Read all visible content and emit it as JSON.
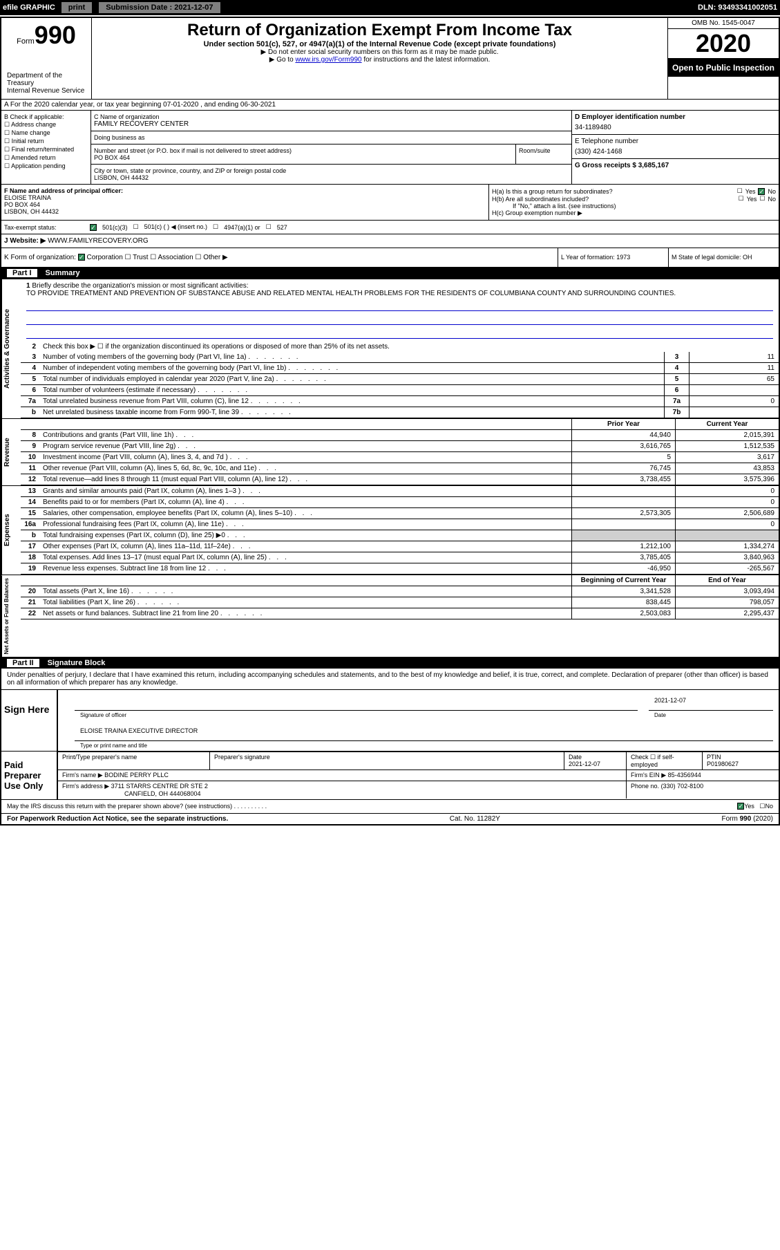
{
  "topbar": {
    "efile": "efile GRAPHIC",
    "print": "print",
    "submission_label": "Submission Date : 2021-12-07",
    "dln": "DLN: 93493341002051"
  },
  "header": {
    "form_prefix": "Form",
    "form_num": "990",
    "title": "Return of Organization Exempt From Income Tax",
    "subtitle": "Under section 501(c), 527, or 4947(a)(1) of the Internal Revenue Code (except private foundations)",
    "note1": "▶ Do not enter social security numbers on this form as it may be made public.",
    "note2_prefix": "▶ Go to ",
    "note2_link": "www.irs.gov/Form990",
    "note2_suffix": " for instructions and the latest information.",
    "dept": "Department of the Treasury\nInternal Revenue Service",
    "omb": "OMB No. 1545-0047",
    "year": "2020",
    "open": "Open to Public Inspection"
  },
  "rowA": "A For the 2020 calendar year, or tax year beginning 07-01-2020    , and ending 06-30-2021",
  "colB": {
    "label": "B Check if applicable:",
    "opts": [
      "Address change",
      "Name change",
      "Initial return",
      "Final return/terminated",
      "Amended return",
      "Application pending"
    ]
  },
  "colC": {
    "name_label": "C Name of organization",
    "name": "FAMILY RECOVERY CENTER",
    "dba_label": "Doing business as",
    "addr_label": "Number and street (or P.O. box if mail is not delivered to street address)",
    "addr": "PO BOX 464",
    "room_label": "Room/suite",
    "city_label": "City or town, state or province, country, and ZIP or foreign postal code",
    "city": "LISBON, OH  44432"
  },
  "colDE": {
    "d_label": "D Employer identification number",
    "d_val": "34-1189480",
    "e_label": "E Telephone number",
    "e_val": "(330) 424-1468",
    "g_label": "G Gross receipts $ 3,685,167"
  },
  "officer": {
    "f_label": "F  Name and address of principal officer:",
    "name": "ELOISE TRAINA",
    "addr1": "PO BOX 464",
    "addr2": "LISBON, OH  44432",
    "ha": "H(a)  Is this a group return for subordinates?",
    "hb": "H(b)  Are all subordinates included?",
    "hb_note": "If \"No,\" attach a list. (see instructions)",
    "hc": "H(c)  Group exemption number ▶",
    "yes": "Yes",
    "no": "No"
  },
  "taxStatus": {
    "label": "Tax-exempt status:",
    "opts": [
      "501(c)(3)",
      "501(c) (   ) ◀ (insert no.)",
      "4947(a)(1) or",
      "527"
    ]
  },
  "website": {
    "label": "J   Website: ▶",
    "val": "WWW.FAMILYRECOVERY.ORG"
  },
  "rowK": {
    "label": "K Form of organization:",
    "opts": [
      "Corporation",
      "Trust",
      "Association",
      "Other ▶"
    ],
    "l": "L Year of formation: 1973",
    "m": "M State of legal domicile: OH"
  },
  "part1": {
    "num": "Part I",
    "title": "Summary",
    "q1": "Briefly describe the organization's mission or most significant activities:",
    "mission": "TO PROVIDE TREATMENT AND PREVENTION OF SUBSTANCE ABUSE AND RELATED MENTAL HEALTH PROBLEMS FOR THE RESIDENTS OF COLUMBIANA COUNTY AND SURROUNDING COUNTIES.",
    "q2": "Check this box ▶ ☐ if the organization discontinued its operations or disposed of more than 25% of its net assets.",
    "lines_gov": [
      {
        "n": "3",
        "t": "Number of voting members of the governing body (Part VI, line 1a)",
        "box": "3",
        "v": "11"
      },
      {
        "n": "4",
        "t": "Number of independent voting members of the governing body (Part VI, line 1b)",
        "box": "4",
        "v": "11"
      },
      {
        "n": "5",
        "t": "Total number of individuals employed in calendar year 2020 (Part V, line 2a)",
        "box": "5",
        "v": "65"
      },
      {
        "n": "6",
        "t": "Total number of volunteers (estimate if necessary)",
        "box": "6",
        "v": ""
      },
      {
        "n": "7a",
        "t": "Total unrelated business revenue from Part VIII, column (C), line 12",
        "box": "7a",
        "v": "0"
      },
      {
        "n": "b",
        "t": "Net unrelated business taxable income from Form 990-T, line 39",
        "box": "7b",
        "v": ""
      }
    ],
    "prior_hdr": "Prior Year",
    "curr_hdr": "Current Year",
    "revenue": [
      {
        "n": "8",
        "t": "Contributions and grants (Part VIII, line 1h)",
        "p": "44,940",
        "c": "2,015,391"
      },
      {
        "n": "9",
        "t": "Program service revenue (Part VIII, line 2g)",
        "p": "3,616,765",
        "c": "1,512,535"
      },
      {
        "n": "10",
        "t": "Investment income (Part VIII, column (A), lines 3, 4, and 7d )",
        "p": "5",
        "c": "3,617"
      },
      {
        "n": "11",
        "t": "Other revenue (Part VIII, column (A), lines 5, 6d, 8c, 9c, 10c, and 11e)",
        "p": "76,745",
        "c": "43,853"
      },
      {
        "n": "12",
        "t": "Total revenue—add lines 8 through 11 (must equal Part VIII, column (A), line 12)",
        "p": "3,738,455",
        "c": "3,575,396"
      }
    ],
    "expenses": [
      {
        "n": "13",
        "t": "Grants and similar amounts paid (Part IX, column (A), lines 1–3 )",
        "p": "",
        "c": "0"
      },
      {
        "n": "14",
        "t": "Benefits paid to or for members (Part IX, column (A), line 4)",
        "p": "",
        "c": "0"
      },
      {
        "n": "15",
        "t": "Salaries, other compensation, employee benefits (Part IX, column (A), lines 5–10)",
        "p": "2,573,305",
        "c": "2,506,689"
      },
      {
        "n": "16a",
        "t": "Professional fundraising fees (Part IX, column (A), line 11e)",
        "p": "",
        "c": "0"
      },
      {
        "n": "b",
        "t": "Total fundraising expenses (Part IX, column (D), line 25) ▶0",
        "p": "grey",
        "c": "grey"
      },
      {
        "n": "17",
        "t": "Other expenses (Part IX, column (A), lines 11a–11d, 11f–24e)",
        "p": "1,212,100",
        "c": "1,334,274"
      },
      {
        "n": "18",
        "t": "Total expenses. Add lines 13–17 (must equal Part IX, column (A), line 25)",
        "p": "3,785,405",
        "c": "3,840,963"
      },
      {
        "n": "19",
        "t": "Revenue less expenses. Subtract line 18 from line 12",
        "p": "-46,950",
        "c": "-265,567"
      }
    ],
    "net_hdr_p": "Beginning of Current Year",
    "net_hdr_c": "End of Year",
    "netassets": [
      {
        "n": "20",
        "t": "Total assets (Part X, line 16)",
        "p": "3,341,528",
        "c": "3,093,494"
      },
      {
        "n": "21",
        "t": "Total liabilities (Part X, line 26)",
        "p": "838,445",
        "c": "798,057"
      },
      {
        "n": "22",
        "t": "Net assets or fund balances. Subtract line 21 from line 20",
        "p": "2,503,083",
        "c": "2,295,437"
      }
    ]
  },
  "part2": {
    "num": "Part II",
    "title": "Signature Block",
    "decl": "Under penalties of perjury, I declare that I have examined this return, including accompanying schedules and statements, and to the best of my knowledge and belief, it is true, correct, and complete. Declaration of preparer (other than officer) is based on all information of which preparer has any knowledge."
  },
  "sign": {
    "here": "Sign Here",
    "sig_officer": "Signature of officer",
    "date": "Date",
    "date_val": "2021-12-07",
    "name": "ELOISE TRAINA  EXECUTIVE DIRECTOR",
    "type_name": "Type or print name and title"
  },
  "paid": {
    "label": "Paid Preparer Use Only",
    "print_name": "Print/Type preparer's name",
    "prep_sig": "Preparer's signature",
    "date": "Date",
    "date_val": "2021-12-07",
    "check": "Check ☐ if self-employed",
    "ptin_label": "PTIN",
    "ptin": "P01980627",
    "firm_name_label": "Firm's name    ▶",
    "firm_name": "BODINE PERRY PLLC",
    "firm_ein_label": "Firm's EIN ▶",
    "firm_ein": "85-4356944",
    "firm_addr_label": "Firm's address ▶",
    "firm_addr1": "3711 STARRS CENTRE DR STE 2",
    "firm_addr2": "CANFIELD, OH  444068004",
    "phone_label": "Phone no.",
    "phone": "(330) 702-8100"
  },
  "discuss": {
    "q": "May the IRS discuss this return with the preparer shown above? (see instructions)",
    "yes": "Yes",
    "no": "No"
  },
  "footer": {
    "left": "For Paperwork Reduction Act Notice, see the separate instructions.",
    "mid": "Cat. No. 11282Y",
    "right": "Form 990 (2020)"
  },
  "sideLabels": {
    "gov": "Activities & Governance",
    "rev": "Revenue",
    "exp": "Expenses",
    "net": "Net Assets or Fund Balances"
  }
}
